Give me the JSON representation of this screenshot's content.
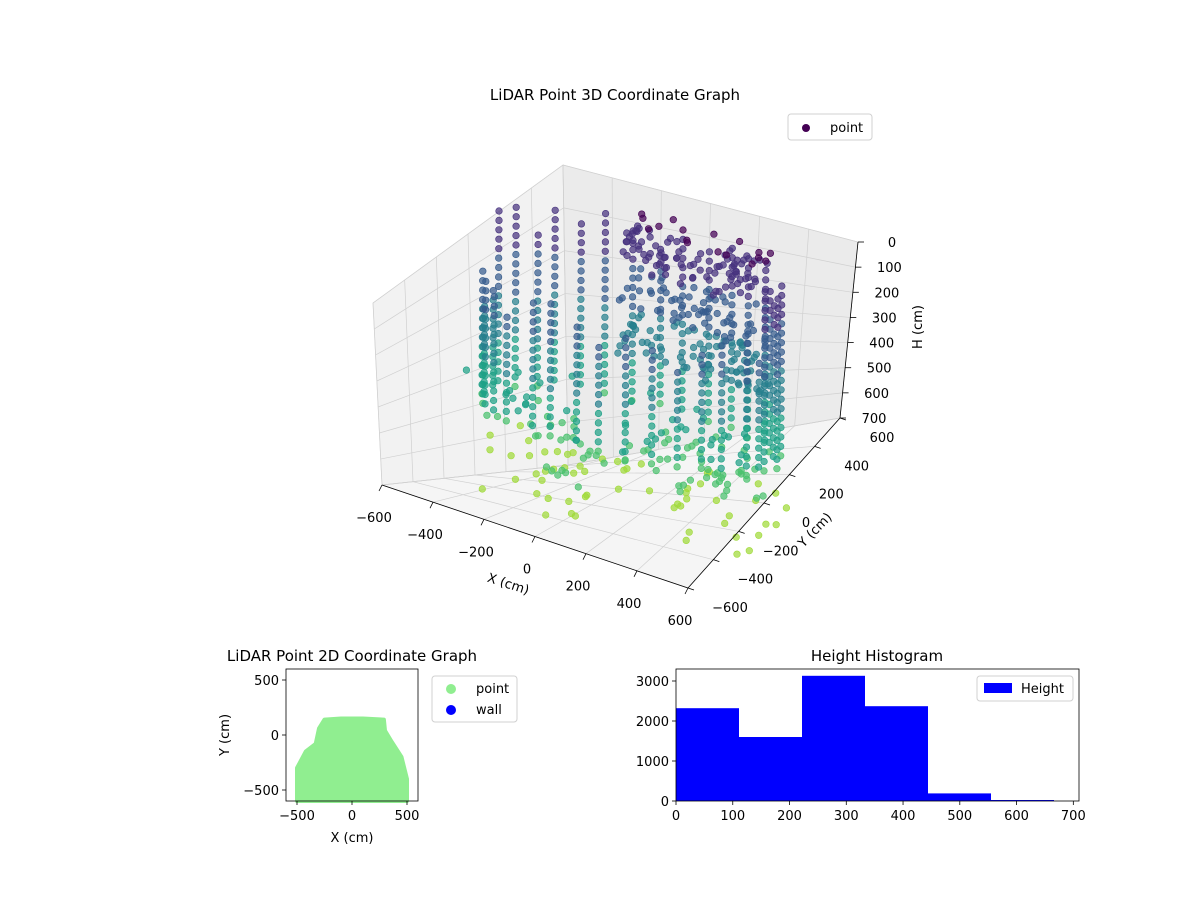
{
  "chart_data": [
    {
      "type": "scatter",
      "title": "LiDAR Point 3D Coordinate Graph",
      "xlabel": "X (cm)",
      "ylabel": "Y (cm)",
      "zlabel": "H (cm)",
      "xlim": [
        -600,
        600
      ],
      "ylim": [
        -600,
        600
      ],
      "zlim": [
        700,
        0
      ],
      "x_ticks": [
        "−600",
        "−400",
        "−200",
        "0",
        "200",
        "400",
        "600"
      ],
      "y_ticks": [
        "−600",
        "−400",
        "−200",
        "0",
        "200",
        "400",
        "600"
      ],
      "z_ticks": [
        "0",
        "100",
        "200",
        "300",
        "400",
        "500",
        "600",
        "700"
      ],
      "legend": {
        "position": "top-right",
        "items": [
          {
            "label": "point",
            "color": "#440154"
          }
        ]
      },
      "colormap": "viridis",
      "description_shape": "3D LiDAR return cloud: a ring of vertical point columns at radius ~450-550 cm around the sensor, with denser walls toward positive Y, heights 0-700 cm; low-height points shown in teal/green, high points in dark purple",
      "grid": true
    },
    {
      "type": "scatter",
      "title": "LiDAR Point 2D Coordinate Graph",
      "xlabel": "X (cm)",
      "ylabel": "Y (cm)",
      "xlim": [
        -600,
        600
      ],
      "ylim": [
        -600,
        600
      ],
      "x_ticks": [
        "−500",
        "0",
        "500"
      ],
      "y_ticks": [
        "−500",
        "0",
        "500"
      ],
      "legend": {
        "position": "outside-right",
        "items": [
          {
            "label": "point",
            "color": "#90ee90"
          },
          {
            "label": "wall",
            "color": "#0000ff"
          }
        ]
      }
    },
    {
      "type": "bar",
      "title": "Height Histogram",
      "xlim": [
        0,
        710
      ],
      "ylim": [
        0,
        3300
      ],
      "x_ticks": [
        "0",
        "100",
        "200",
        "300",
        "400",
        "500",
        "600",
        "700"
      ],
      "y_ticks": [
        "0",
        "1000",
        "2000",
        "3000"
      ],
      "bin_edges": [
        0,
        111,
        222,
        333,
        444,
        555,
        666
      ],
      "values": [
        2320,
        1600,
        3130,
        2370,
        190,
        25
      ],
      "color": "#0000ff",
      "legend": {
        "position": "top-right",
        "items": [
          {
            "label": "Height",
            "color": "#0000ff"
          }
        ]
      }
    }
  ]
}
